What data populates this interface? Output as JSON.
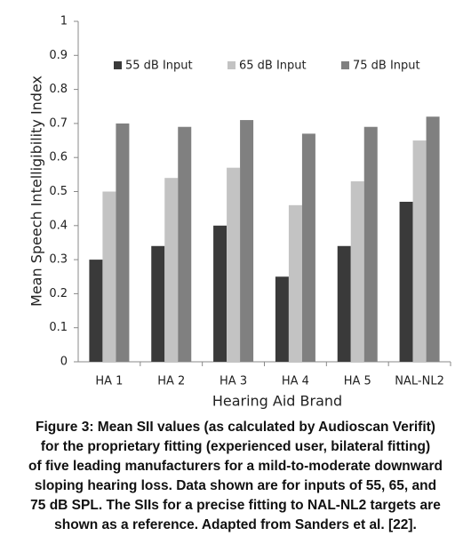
{
  "chart_data": {
    "type": "bar",
    "categories": [
      "HA 1",
      "HA 2",
      "HA 3",
      "HA 4",
      "HA 5",
      "NAL-NL2"
    ],
    "series": [
      {
        "name": "55 dB Input",
        "color": "#3a3a3a",
        "values": [
          0.3,
          0.34,
          0.4,
          0.25,
          0.34,
          0.47
        ]
      },
      {
        "name": "65 dB Input",
        "color": "#c3c3c3",
        "values": [
          0.5,
          0.54,
          0.57,
          0.46,
          0.53,
          0.65
        ]
      },
      {
        "name": "75 dB Input",
        "color": "#808080",
        "values": [
          0.7,
          0.69,
          0.71,
          0.67,
          0.69,
          0.72
        ]
      }
    ],
    "ylim": [
      0,
      1
    ],
    "yticks": [
      0,
      0.1,
      0.2,
      0.3,
      0.4,
      0.5,
      0.6,
      0.7,
      0.8,
      0.9,
      1
    ],
    "x_label": "Hearing Aid Brand",
    "y_label": "Mean Speech Intelligibility Index"
  },
  "caption": [
    "Figure 3: Mean SII values (as calculated by Audioscan Verifit)",
    "for the proprietary fitting (experienced user, bilateral fitting)",
    "of five leading manufacturers for a mild-to-moderate downward",
    "sloping hearing loss. Data shown are for inputs of 55, 65, and",
    "75 dB SPL. The SIIs for a precise fitting to NAL-NL2 targets are",
    "shown as a reference. Adapted from Sanders et al. [22]."
  ]
}
